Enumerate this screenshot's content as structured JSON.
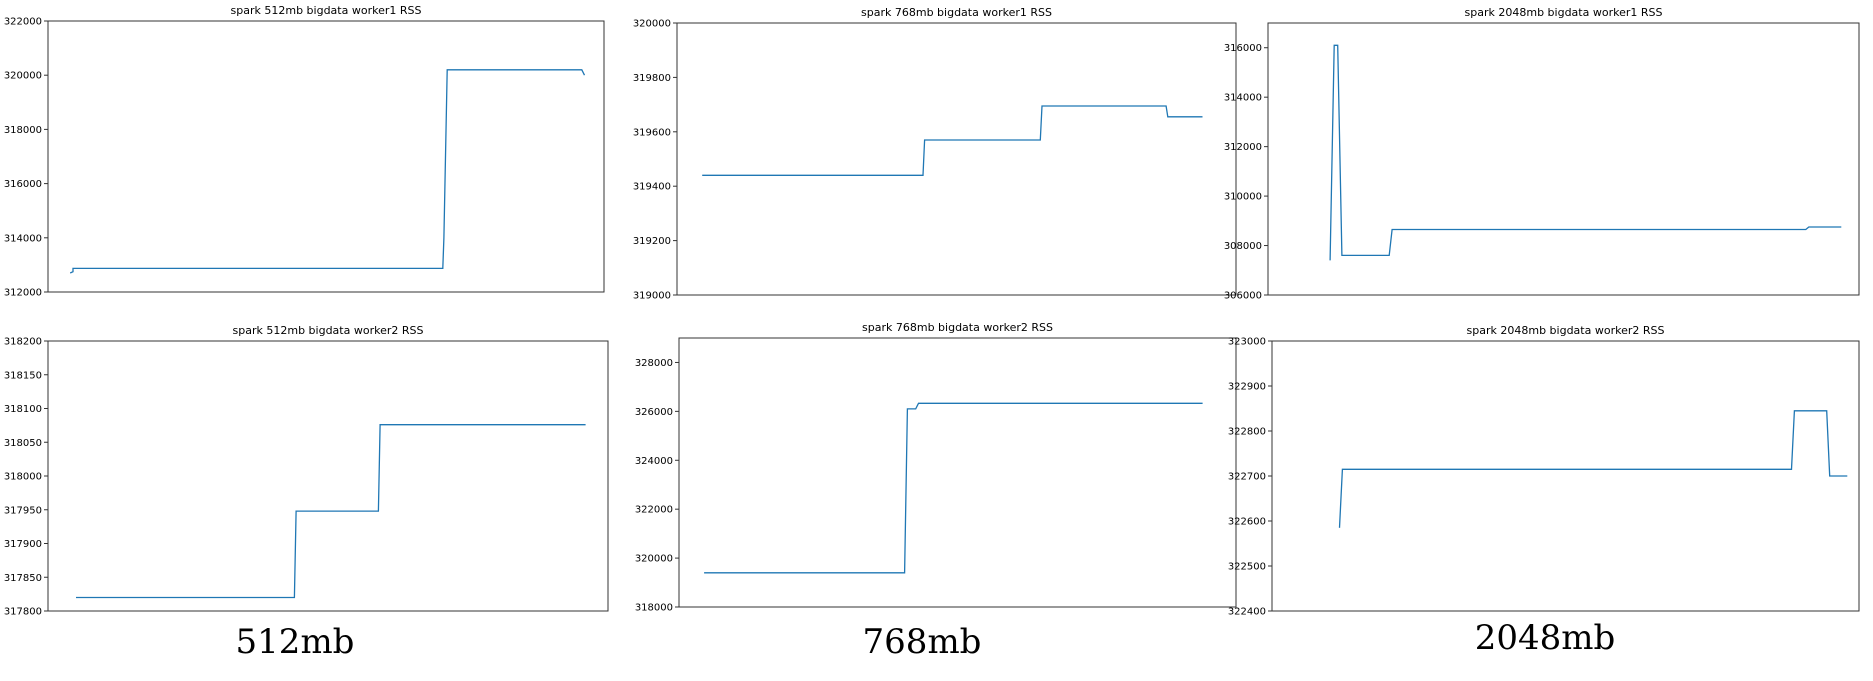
{
  "captions": [
    "512mb",
    "768mb",
    "2048mb"
  ],
  "colors": {
    "line": "#1f77b4",
    "axes": "#333333"
  },
  "chart_data": [
    {
      "type": "line",
      "title": "spark 512mb bigdata worker1 RSS",
      "xlabel": "",
      "ylabel": "",
      "xlim": [
        0,
        100
      ],
      "ylim": [
        312000,
        322000
      ],
      "yticks": [
        312000,
        314000,
        316000,
        318000,
        320000,
        322000
      ],
      "xticks": [],
      "grid": false,
      "series": [
        {
          "x": [
            4,
            4.5,
            4.5,
            71,
            71.2,
            71.8,
            96,
            96.5
          ],
          "y": [
            312700,
            312750,
            312870,
            312870,
            314000,
            320200,
            320200,
            320000
          ]
        }
      ]
    },
    {
      "type": "line",
      "title": "spark 768mb bigdata worker1 RSS",
      "xlabel": "",
      "ylabel": "",
      "xlim": [
        0,
        100
      ],
      "ylim": [
        319000,
        320000
      ],
      "yticks": [
        319000,
        319200,
        319400,
        319600,
        319800,
        320000
      ],
      "xticks": [],
      "grid": false,
      "series": [
        {
          "x": [
            4.5,
            44,
            44.3,
            65,
            65.3,
            87.5,
            87.8,
            94
          ],
          "y": [
            319440,
            319440,
            319570,
            319570,
            319695,
            319695,
            319655,
            319655
          ]
        }
      ]
    },
    {
      "type": "line",
      "title": "spark 2048mb bigdata worker1 RSS",
      "xlabel": "",
      "ylabel": "",
      "xlim": [
        0,
        100
      ],
      "ylim": [
        306000,
        317000
      ],
      "yticks": [
        306000,
        308000,
        310000,
        312000,
        314000,
        316000
      ],
      "xticks": [],
      "grid": false,
      "series": [
        {
          "x": [
            10.5,
            11.2,
            11.8,
            12.5,
            13,
            20.5,
            21,
            91,
            91.5,
            97
          ],
          "y": [
            307400,
            316100,
            316100,
            307600,
            307600,
            307600,
            308650,
            308650,
            308750,
            308750
          ]
        }
      ]
    },
    {
      "type": "line",
      "title": "spark 512mb bigdata worker2 RSS",
      "xlabel": "",
      "ylabel": "",
      "xlim": [
        0,
        100
      ],
      "ylim": [
        317800,
        318200
      ],
      "yticks": [
        317800,
        317850,
        317900,
        317950,
        318000,
        318050,
        318100,
        318150,
        318200
      ],
      "xticks": [],
      "grid": false,
      "series": [
        {
          "x": [
            5,
            44,
            44.3,
            59,
            59.3,
            96
          ],
          "y": [
            317820,
            317820,
            317948,
            317948,
            318076,
            318076
          ]
        }
      ]
    },
    {
      "type": "line",
      "title": "spark 768mb bigdata worker2 RSS",
      "xlabel": "",
      "ylabel": "",
      "xlim": [
        0,
        100
      ],
      "ylim": [
        318000,
        329000
      ],
      "yticks": [
        318000,
        320000,
        322000,
        324000,
        326000,
        328000
      ],
      "xticks": [],
      "grid": false,
      "series": [
        {
          "x": [
            4.5,
            40.5,
            41,
            42.5,
            43,
            94
          ],
          "y": [
            319400,
            319400,
            326100,
            326100,
            326330,
            326330
          ]
        }
      ]
    },
    {
      "type": "line",
      "title": "spark 2048mb bigdata worker2 RSS",
      "xlabel": "",
      "ylabel": "",
      "xlim": [
        0,
        100
      ],
      "ylim": [
        322400,
        323000
      ],
      "yticks": [
        322400,
        322500,
        322600,
        322700,
        322800,
        322900,
        323000
      ],
      "xticks": [],
      "grid": false,
      "series": [
        {
          "x": [
            11.5,
            12,
            88.5,
            89,
            94.5,
            95,
            98
          ],
          "y": [
            322585,
            322715,
            322715,
            322845,
            322845,
            322700,
            322700
          ]
        }
      ]
    }
  ]
}
